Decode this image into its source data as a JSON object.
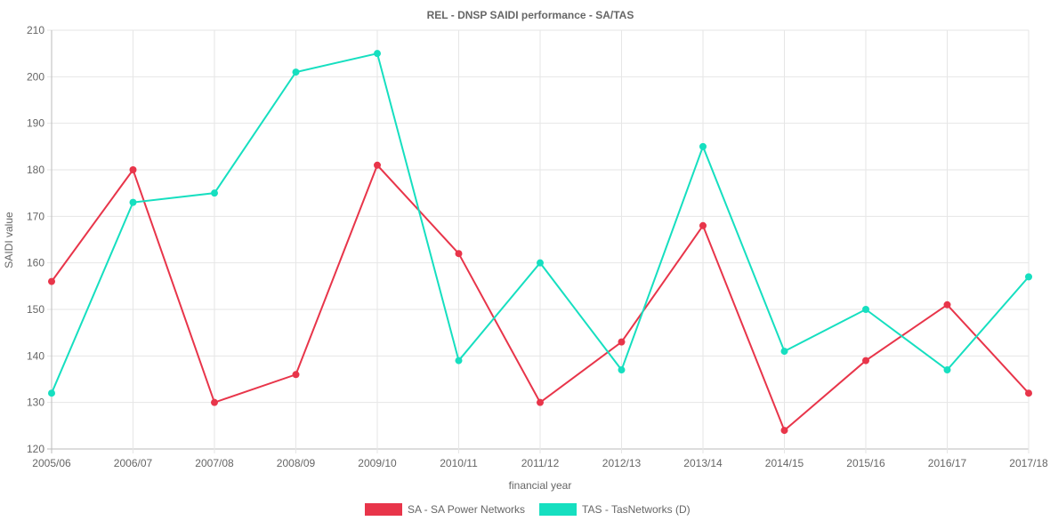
{
  "chart_data": {
    "type": "line",
    "title": "REL - DNSP SAIDI performance - SA/TAS",
    "xlabel": "financial year",
    "ylabel": "SAIDI value",
    "ylim": [
      120,
      210
    ],
    "yticks": [
      120,
      130,
      140,
      150,
      160,
      170,
      180,
      190,
      200,
      210
    ],
    "grid": true,
    "legend": "bottom",
    "categories": [
      "2005/06",
      "2006/07",
      "2007/08",
      "2008/09",
      "2009/10",
      "2010/11",
      "2011/12",
      "2012/13",
      "2013/14",
      "2014/15",
      "2015/16",
      "2016/17",
      "2017/18"
    ],
    "series": [
      {
        "name": "SA - SA Power Networks",
        "color": "#e8354a",
        "values": [
          156,
          180,
          130,
          136,
          181,
          162,
          130,
          143,
          168,
          124,
          139,
          151,
          132
        ]
      },
      {
        "name": "TAS - TasNetworks (D)",
        "color": "#16dfc0",
        "values": [
          132,
          173,
          175,
          201,
          205,
          139,
          160,
          137,
          185,
          141,
          150,
          137,
          157
        ]
      }
    ]
  }
}
